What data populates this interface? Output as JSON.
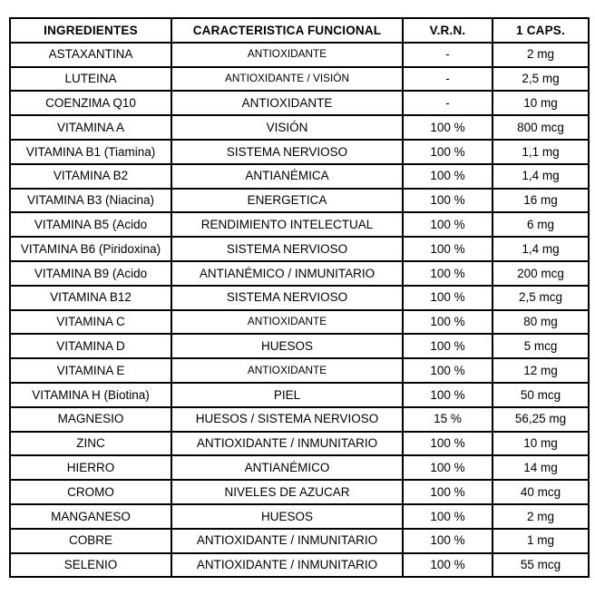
{
  "page": {
    "background_color": "#ffffff",
    "text_color": "#000000",
    "border_color": "#000000"
  },
  "table": {
    "columns": [
      "INGREDIENTES",
      "CARACTERISTICA FUNCIONAL",
      "V.R.N.",
      "1 CAPS."
    ],
    "rows": [
      {
        "ingredient": "ASTAXANTINA",
        "feature": "ANTIOXIDANTE",
        "vrn": "-",
        "amount": "2 mg",
        "feature_small": true
      },
      {
        "ingredient": "LUTEINA",
        "feature": "ANTIOXIDANTE / VISIÓN",
        "vrn": "-",
        "amount": "2,5 mg",
        "feature_small": true
      },
      {
        "ingredient": "COENZIMA Q10",
        "feature": "ANTIOXIDANTE",
        "vrn": "-",
        "amount": "10 mg"
      },
      {
        "ingredient": "VITAMINA A",
        "feature": "VISIÓN",
        "vrn": "100 %",
        "amount": "800 mcg"
      },
      {
        "ingredient": "VITAMINA B1 (Tiamina)",
        "feature": "SISTEMA NERVIOSO",
        "vrn": "100 %",
        "amount": "1,1 mg"
      },
      {
        "ingredient": "VITAMINA B2",
        "feature": "ANTIANÉMICA",
        "vrn": "100 %",
        "amount": "1,4 mg"
      },
      {
        "ingredient": "VITAMINA B3 (Niacina)",
        "feature": "ENERGETICA",
        "vrn": "100 %",
        "amount": "16 mg"
      },
      {
        "ingredient": "VITAMINA B5 (Acido",
        "feature": "RENDIMIENTO INTELECTUAL",
        "vrn": "100 %",
        "amount": "6 mg"
      },
      {
        "ingredient": "VITAMINA B6 (Piridoxina)",
        "feature": "SISTEMA NERVIOSO",
        "vrn": "100 %",
        "amount": "1,4 mg"
      },
      {
        "ingredient": "VITAMINA B9 (Acido",
        "feature": "ANTIANÉMICO / INMUNITARIO",
        "vrn": "100 %",
        "amount": "200 mcg"
      },
      {
        "ingredient": "VITAMINA B12",
        "feature": "SISTEMA NERVIOSO",
        "vrn": "100 %",
        "amount": "2,5 mcg"
      },
      {
        "ingredient": "VITAMINA C",
        "feature": "ANTIOXIDANTE",
        "vrn": "100 %",
        "amount": "80 mg",
        "feature_small": true
      },
      {
        "ingredient": "VITAMINA D",
        "feature": "HUESOS",
        "vrn": "100 %",
        "amount": "5 mcg"
      },
      {
        "ingredient": "VITAMINA E",
        "feature": "ANTIOXIDANTE",
        "vrn": "100 %",
        "amount": "12 mg",
        "feature_small": true
      },
      {
        "ingredient": "VITAMINA H (Biotina)",
        "feature": "PIEL",
        "vrn": "100 %",
        "amount": "50 mcg"
      },
      {
        "ingredient": "MAGNESIO",
        "feature": "HUESOS / SISTEMA NERVIOSO",
        "vrn": "15 %",
        "amount": "56,25 mg"
      },
      {
        "ingredient": "ZINC",
        "feature": "ANTIOXIDANTE / INMUNITARIO",
        "vrn": "100 %",
        "amount": "10 mg"
      },
      {
        "ingredient": "HIERRO",
        "feature": "ANTIANÉMICO",
        "vrn": "100 %",
        "amount": "14 mg"
      },
      {
        "ingredient": "CROMO",
        "feature": "NIVELES DE AZUCAR",
        "vrn": "100 %",
        "amount": "40 mcg"
      },
      {
        "ingredient": "MANGANESO",
        "feature": "HUESOS",
        "vrn": "100 %",
        "amount": "2 mg"
      },
      {
        "ingredient": "COBRE",
        "feature": "ANTIOXIDANTE / INMUNITARIO",
        "vrn": "100 %",
        "amount": "1 mg"
      },
      {
        "ingredient": "SELENIO",
        "feature": "ANTIOXIDANTE / INMUNITARIO",
        "vrn": "100 %",
        "amount": "55 mcg"
      }
    ]
  }
}
